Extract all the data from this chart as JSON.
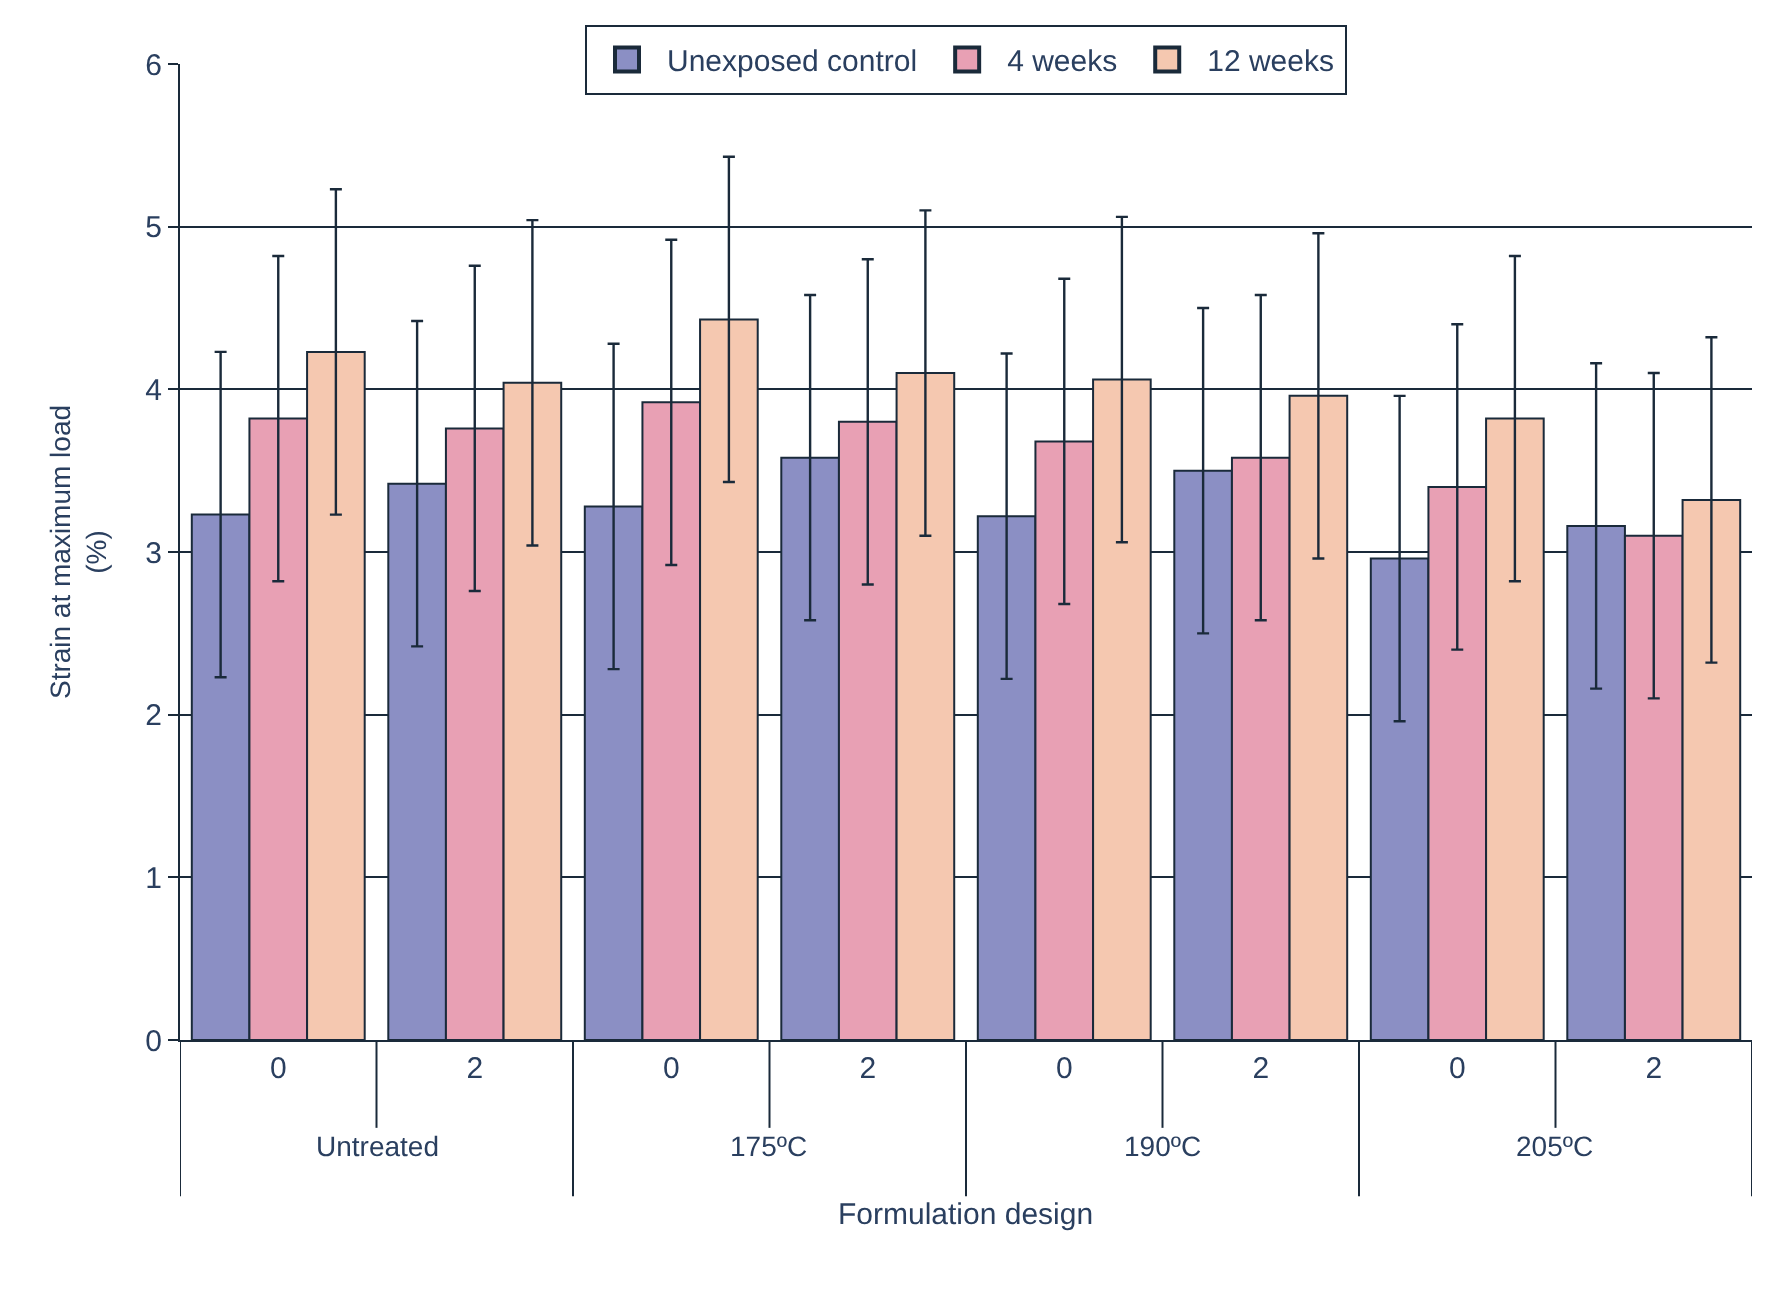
{
  "chart_data": {
    "type": "bar",
    "xlabel": "Formulation design",
    "ylabel": "Strain at maximum load\n(%)",
    "categories": [
      "0",
      "2",
      "0",
      "2",
      "0",
      "2",
      "0",
      "2"
    ],
    "annotations": [
      "Untreated",
      "175ºC",
      "190ºC",
      "205ºC"
    ],
    "series": [
      {
        "name": "Unexposed control",
        "color": "#8b8fc4",
        "values": [
          3.23,
          3.42,
          3.28,
          3.58,
          3.22,
          3.5,
          2.96,
          3.16
        ],
        "errors": [
          1.0,
          1.0,
          1.0,
          1.0,
          1.0,
          1.0,
          1.0,
          1.0
        ]
      },
      {
        "name": "4 weeks",
        "color": "#e8a0b4",
        "values": [
          3.82,
          3.76,
          3.92,
          3.8,
          3.68,
          3.58,
          3.4,
          3.1
        ],
        "errors": [
          1.0,
          1.0,
          1.0,
          1.0,
          1.0,
          1.0,
          1.0,
          1.0
        ]
      },
      {
        "name": "12 weeks",
        "color": "#f5c8b0",
        "values": [
          4.23,
          4.04,
          4.43,
          4.1,
          4.06,
          3.96,
          3.82,
          3.32
        ],
        "errors": [
          1.0,
          1.0,
          1.0,
          1.0,
          1.0,
          1.0,
          1.0,
          1.0
        ]
      }
    ],
    "ylim": [
      0,
      6
    ],
    "yticks": [
      0,
      1,
      2,
      3,
      4,
      5,
      6
    ],
    "grid": "y",
    "legend": "top"
  }
}
